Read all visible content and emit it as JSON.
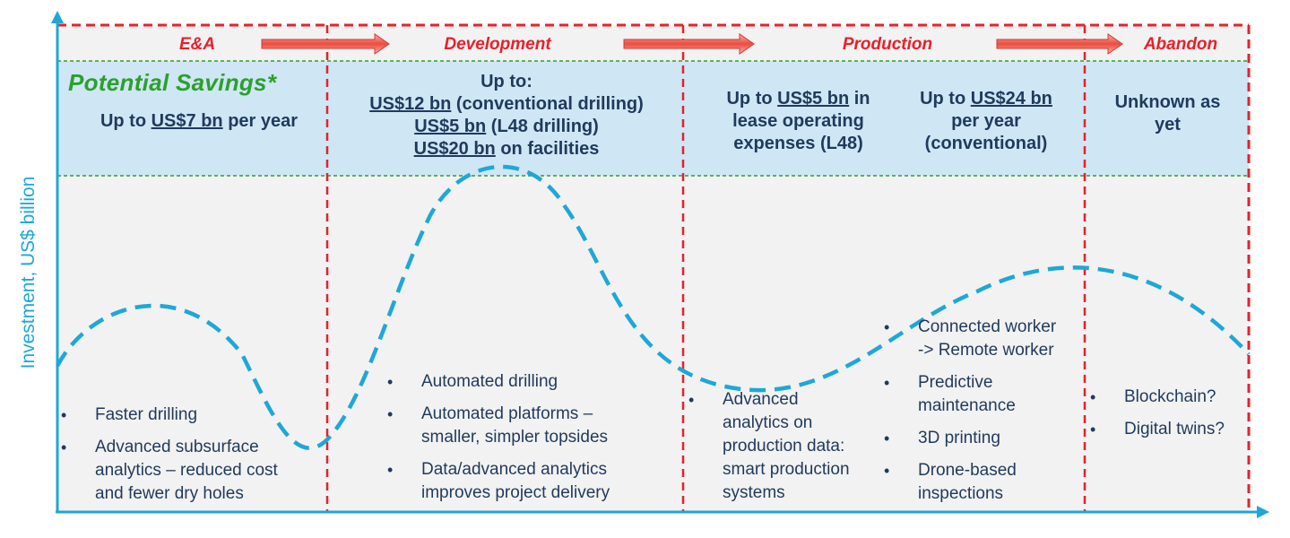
{
  "axis": {
    "ylabel": "Investment, US$ billion"
  },
  "phases": [
    {
      "label": "E&A"
    },
    {
      "label": "Development"
    },
    {
      "label": "Production"
    },
    {
      "label": "Abandon"
    }
  ],
  "potential_savings": {
    "title": "Potential Savings*",
    "ea": {
      "prefix": "Up to ",
      "amount": "US$7 bn",
      "suffix": " per year"
    },
    "development": {
      "line1": "Up to:",
      "line2_amount": "US$12 bn",
      "line2_rest": " (conventional drilling)",
      "line3_amount": "US$5 bn",
      "line3_rest": " (L48 drilling)",
      "line4_amount": "US$20 bn",
      "line4_rest": " on facilities"
    },
    "production_l48": {
      "line1_prefix": "Up to ",
      "line1_amount": "US$5 bn",
      "line1_rest": " in",
      "line2": "lease operating",
      "line3": "expenses (L48)"
    },
    "production_conv": {
      "line1_prefix": "Up to ",
      "line1_amount": "US$24 bn",
      "line2": "per year",
      "line3": "(conventional)"
    },
    "abandon": {
      "line1": "Unknown as",
      "line2": "yet"
    }
  },
  "technologies": {
    "ea": [
      {
        "lines": [
          "Faster drilling"
        ]
      },
      {
        "lines": [
          "Advanced subsurface",
          "analytics – reduced cost",
          "and fewer dry holes"
        ]
      }
    ],
    "development": [
      {
        "lines": [
          "Automated drilling"
        ]
      },
      {
        "lines": [
          "Automated platforms –",
          "smaller, simpler topsides"
        ]
      },
      {
        "lines": [
          "Data/advanced analytics",
          "improves project delivery"
        ]
      }
    ],
    "production_left": [
      {
        "lines": [
          "Advanced",
          "analytics on",
          "production data:",
          "smart production",
          "systems"
        ]
      }
    ],
    "production_right": [
      {
        "lines": [
          "Connected worker",
          "-> Remote worker"
        ]
      },
      {
        "lines": [
          "Predictive",
          "maintenance"
        ]
      },
      {
        "lines": [
          "3D printing"
        ]
      },
      {
        "lines": [
          "Drone-based",
          "inspections"
        ]
      }
    ],
    "abandon": [
      {
        "lines": [
          "Blockchain?"
        ]
      },
      {
        "lines": [
          "Digital twins?"
        ]
      }
    ]
  },
  "colors": {
    "phase_text": "#e8202a",
    "dashed_border": "#e8202a",
    "savings_band": "#cfe6f5",
    "savings_title": "#2ca02c",
    "curve": "#1ea7d8",
    "axis": "#1ea7d8",
    "text": "#1f3a5c",
    "panel": "#f2f2f2"
  }
}
